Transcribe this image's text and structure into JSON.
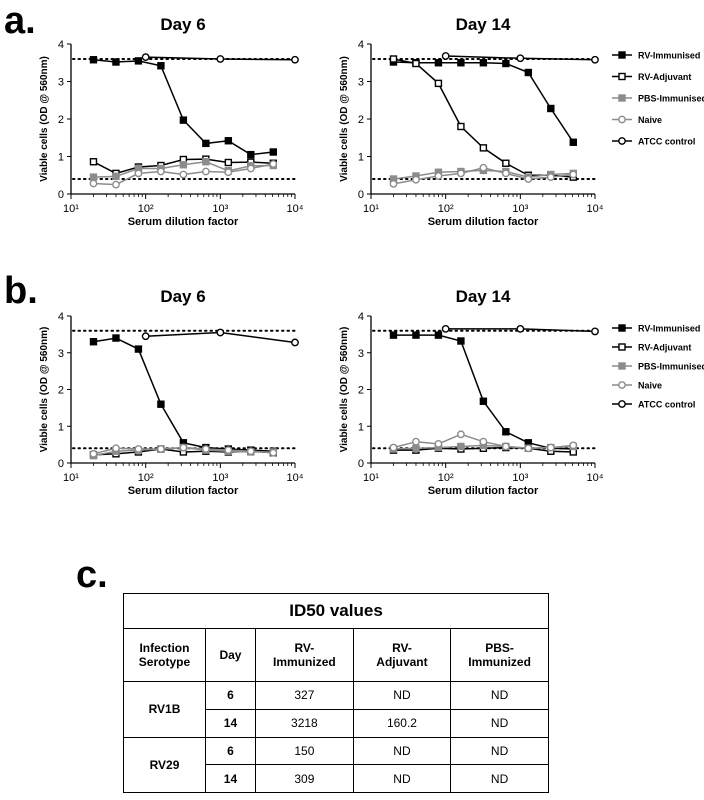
{
  "panels": [
    "a.",
    "b.",
    "c."
  ],
  "chart_data": [
    {
      "type": "line",
      "panel": "a",
      "title": "Day 6",
      "xlabel": "Serum dilution factor",
      "ylabel": "Viable cells (OD @ 560nm)",
      "xscale": "log",
      "xlim": [
        10,
        10000
      ],
      "ylim": [
        0,
        4
      ],
      "xticks": [
        "10¹",
        "10²",
        "10³",
        "10⁴"
      ],
      "yticks": [
        "0",
        "1",
        "2",
        "3",
        "4"
      ],
      "reference_lines": [
        3.6,
        0.4
      ],
      "series": [
        {
          "name": "RV-Immunised",
          "x": [
            20,
            40,
            80,
            160,
            320,
            640,
            1280,
            2560,
            5120
          ],
          "y": [
            3.58,
            3.52,
            3.55,
            3.42,
            1.97,
            1.35,
            1.42,
            1.05,
            1.12
          ]
        },
        {
          "name": "RV-Adjuvant",
          "x": [
            20,
            40,
            80,
            160,
            320,
            640,
            1280,
            2560,
            5120
          ],
          "y": [
            0.86,
            0.55,
            0.72,
            0.76,
            0.92,
            0.93,
            0.84,
            0.85,
            0.82
          ]
        },
        {
          "name": "PBS-Immunised",
          "x": [
            20,
            40,
            80,
            160,
            320,
            640,
            1280,
            2560,
            5120
          ],
          "y": [
            0.45,
            0.47,
            0.68,
            0.68,
            0.78,
            0.86,
            0.62,
            0.75,
            0.76
          ]
        },
        {
          "name": "Naive",
          "x": [
            20,
            40,
            80,
            160,
            320,
            640,
            1280,
            2560,
            5120
          ],
          "y": [
            0.28,
            0.25,
            0.55,
            0.6,
            0.52,
            0.6,
            0.58,
            0.68,
            0.8
          ]
        },
        {
          "name": "ATCC control",
          "x": [
            100,
            1000,
            10000
          ],
          "y": [
            3.65,
            3.6,
            3.58
          ]
        }
      ]
    },
    {
      "type": "line",
      "panel": "a",
      "title": "Day 14",
      "xlabel": "Serum dilution factor",
      "ylabel": "Viable cells (OD @ 560nm)",
      "xscale": "log",
      "xlim": [
        10,
        10000
      ],
      "ylim": [
        0,
        4
      ],
      "xticks": [
        "10¹",
        "10²",
        "10³",
        "10⁴"
      ],
      "yticks": [
        "0",
        "1",
        "2",
        "3",
        "4"
      ],
      "reference_lines": [
        3.6,
        0.4
      ],
      "series": [
        {
          "name": "RV-Immunised",
          "x": [
            20,
            40,
            80,
            160,
            320,
            640,
            1280,
            2560,
            5120
          ],
          "y": [
            3.52,
            3.5,
            3.5,
            3.5,
            3.5,
            3.48,
            3.24,
            2.28,
            1.38
          ]
        },
        {
          "name": "RV-Adjuvant",
          "x": [
            20,
            40,
            80,
            160,
            320,
            640,
            1280,
            2560,
            5120
          ],
          "y": [
            3.6,
            3.48,
            2.95,
            1.8,
            1.23,
            0.82,
            0.5,
            0.5,
            0.45
          ]
        },
        {
          "name": "PBS-Immunised",
          "x": [
            20,
            40,
            80,
            160,
            320,
            640,
            1280,
            2560,
            5120
          ],
          "y": [
            0.4,
            0.48,
            0.58,
            0.6,
            0.63,
            0.6,
            0.45,
            0.52,
            0.55
          ]
        },
        {
          "name": "Naive",
          "x": [
            20,
            40,
            80,
            160,
            320,
            640,
            1280,
            2560,
            5120
          ],
          "y": [
            0.27,
            0.38,
            0.48,
            0.55,
            0.7,
            0.55,
            0.4,
            0.45,
            0.52
          ]
        },
        {
          "name": "ATCC control",
          "x": [
            100,
            1000,
            10000
          ],
          "y": [
            3.68,
            3.62,
            3.58
          ]
        }
      ]
    },
    {
      "type": "line",
      "panel": "b",
      "title": "Day 6",
      "xlabel": "Serum dilution factor",
      "ylabel": "Viable cells (OD @ 560nm)",
      "xscale": "log",
      "xlim": [
        10,
        10000
      ],
      "ylim": [
        0,
        4
      ],
      "xticks": [
        "10¹",
        "10²",
        "10³",
        "10⁴"
      ],
      "yticks": [
        "0",
        "1",
        "2",
        "3",
        "4"
      ],
      "reference_lines": [
        3.6,
        0.4
      ],
      "series": [
        {
          "name": "RV-Immunised",
          "x": [
            20,
            40,
            80,
            160,
            320,
            640,
            1280,
            2560,
            5120
          ],
          "y": [
            3.3,
            3.4,
            3.1,
            1.6,
            0.55,
            0.42,
            0.38,
            0.35,
            0.32
          ]
        },
        {
          "name": "RV-Adjuvant",
          "x": [
            20,
            40,
            80,
            160,
            320,
            640,
            1280,
            2560,
            5120
          ],
          "y": [
            0.22,
            0.25,
            0.3,
            0.38,
            0.3,
            0.32,
            0.3,
            0.32,
            0.28
          ]
        },
        {
          "name": "PBS-Immunised",
          "x": [
            20,
            40,
            80,
            160,
            320,
            640,
            1280,
            2560,
            5120
          ],
          "y": [
            0.2,
            0.32,
            0.35,
            0.38,
            0.42,
            0.35,
            0.32,
            0.3,
            0.3
          ]
        },
        {
          "name": "Naive",
          "x": [
            20,
            40,
            80,
            160,
            320,
            640,
            1280,
            2560,
            5120
          ],
          "y": [
            0.25,
            0.4,
            0.38,
            0.38,
            0.42,
            0.38,
            0.35,
            0.32,
            0.28
          ]
        },
        {
          "name": "ATCC control",
          "x": [
            100,
            1000,
            10000
          ],
          "y": [
            3.45,
            3.55,
            3.28
          ]
        }
      ]
    },
    {
      "type": "line",
      "panel": "b",
      "title": "Day 14",
      "xlabel": "Serum dilution factor",
      "ylabel": "Viable cells (OD @ 560nm)",
      "xscale": "log",
      "xlim": [
        10,
        10000
      ],
      "ylim": [
        0,
        4
      ],
      "xticks": [
        "10¹",
        "10²",
        "10³",
        "10⁴"
      ],
      "yticks": [
        "0",
        "1",
        "2",
        "3",
        "4"
      ],
      "reference_lines": [
        3.6,
        0.4
      ],
      "series": [
        {
          "name": "RV-Immunised",
          "x": [
            20,
            40,
            80,
            160,
            320,
            640,
            1280,
            2560,
            5120
          ],
          "y": [
            3.48,
            3.48,
            3.48,
            3.32,
            1.68,
            0.85,
            0.55,
            0.4,
            0.38
          ]
        },
        {
          "name": "RV-Adjuvant",
          "x": [
            20,
            40,
            80,
            160,
            320,
            640,
            1280,
            2560,
            5120
          ],
          "y": [
            0.35,
            0.35,
            0.4,
            0.38,
            0.4,
            0.42,
            0.4,
            0.32,
            0.3
          ]
        },
        {
          "name": "PBS-Immunised",
          "x": [
            20,
            40,
            80,
            160,
            320,
            640,
            1280,
            2560,
            5120
          ],
          "y": [
            0.38,
            0.4,
            0.42,
            0.45,
            0.48,
            0.45,
            0.4,
            0.42,
            0.45
          ]
        },
        {
          "name": "Naive",
          "x": [
            20,
            40,
            80,
            160,
            320,
            640,
            1280,
            2560,
            5120
          ],
          "y": [
            0.42,
            0.58,
            0.52,
            0.78,
            0.58,
            0.45,
            0.4,
            0.42,
            0.48
          ]
        },
        {
          "name": "ATCC control",
          "x": [
            100,
            1000,
            10000
          ],
          "y": [
            3.65,
            3.65,
            3.58
          ]
        }
      ]
    },
    {
      "type": "table",
      "panel": "c",
      "title": "ID50 values",
      "headers": {
        "serotype": "Infection Serotype",
        "day": "Day",
        "rv_imm": "RV-\nImmunized",
        "rv_adj": "RV-\nAdjuvant",
        "pbs_imm": "PBS-\nImmunized"
      },
      "groups": [
        {
          "serotype": "RV1B",
          "rows": [
            {
              "day": "6",
              "rv_imm": "327",
              "rv_adj": "ND",
              "pbs_imm": "ND"
            },
            {
              "day": "14",
              "rv_imm": "3218",
              "rv_adj": "160.2",
              "pbs_imm": "ND"
            }
          ]
        },
        {
          "serotype": "RV29",
          "rows": [
            {
              "day": "6",
              "rv_imm": "150",
              "rv_adj": "ND",
              "pbs_imm": "ND"
            },
            {
              "day": "14",
              "rv_imm": "309",
              "rv_adj": "ND",
              "pbs_imm": "ND"
            }
          ]
        }
      ]
    }
  ],
  "legend": [
    {
      "label": "RV-Immunised",
      "marker": "square",
      "fill": "#000000",
      "stroke": "#000000",
      "line": "#000000"
    },
    {
      "label": "RV-Adjuvant",
      "marker": "square",
      "fill": "#ffffff",
      "stroke": "#000000",
      "line": "#000000"
    },
    {
      "label": "PBS-Immunised",
      "marker": "square",
      "fill": "#8c8c8c",
      "stroke": "#8c8c8c",
      "line": "#8c8c8c"
    },
    {
      "label": "Naive",
      "marker": "circle",
      "fill": "#ffffff",
      "stroke": "#8c8c8c",
      "line": "#8c8c8c"
    },
    {
      "label": "ATCC control",
      "marker": "circle",
      "fill": "#ffffff",
      "stroke": "#000000",
      "line": "#000000"
    }
  ]
}
